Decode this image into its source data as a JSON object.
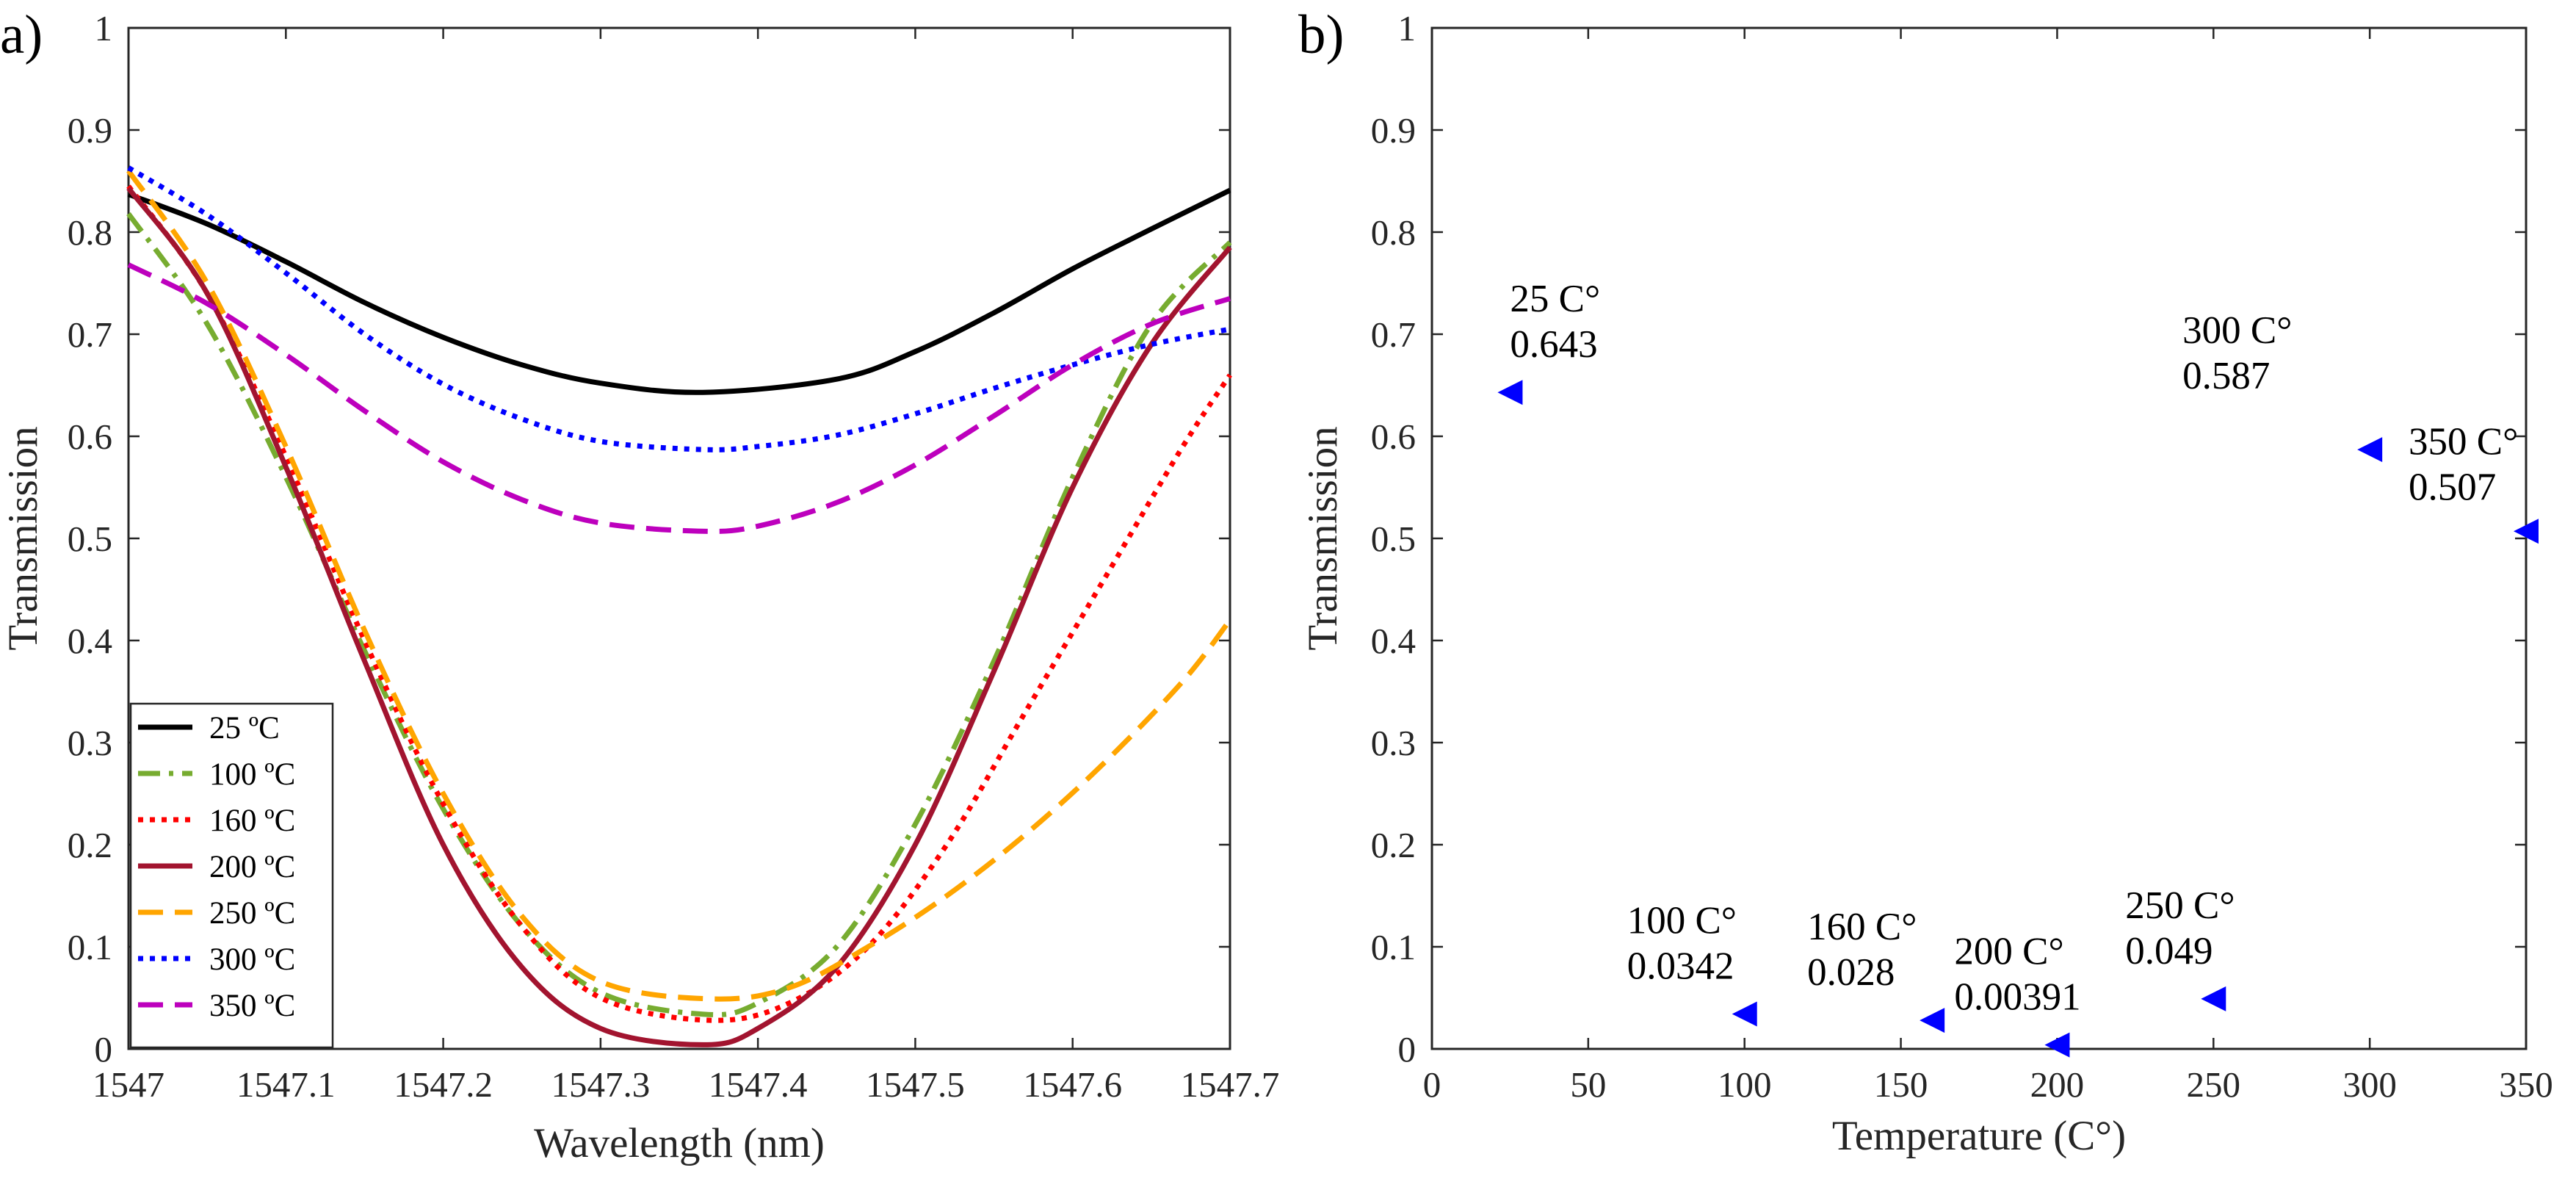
{
  "chart_data": [
    {
      "panel_label": "a)",
      "type": "line",
      "xlabel": "Wavelength (nm)",
      "ylabel": "Transmission",
      "xlim": [
        1547,
        1547.7
      ],
      "ylim": [
        0,
        1
      ],
      "xticks": [
        "1547",
        "1547.1",
        "1547.2",
        "1547.3",
        "1547.4",
        "1547.5",
        "1547.6",
        "1547.7"
      ],
      "yticks": [
        "0",
        "0.1",
        "0.2",
        "0.3",
        "0.4",
        "0.5",
        "0.6",
        "0.7",
        "0.8",
        "0.9",
        "1"
      ],
      "legend_position": "bottom-left",
      "series": [
        {
          "name": "25 ºC",
          "style": "solid",
          "color": "#000000",
          "x": [
            1547,
            1547.05,
            1547.1,
            1547.15,
            1547.2,
            1547.25,
            1547.3,
            1547.365,
            1547.45,
            1547.5,
            1547.55,
            1547.6,
            1547.65,
            1547.7
          ],
          "y": [
            0.837,
            0.808,
            0.771,
            0.731,
            0.697,
            0.67,
            0.652,
            0.643,
            0.656,
            0.683,
            0.721,
            0.764,
            0.803,
            0.841
          ]
        },
        {
          "name": "100 ºC",
          "style": "dashdot",
          "color": "#77ac30",
          "x": [
            1547,
            1547.05,
            1547.1,
            1547.15,
            1547.2,
            1547.25,
            1547.3,
            1547.365,
            1547.4,
            1547.45,
            1547.5,
            1547.55,
            1547.6,
            1547.65,
            1547.7
          ],
          "y": [
            0.818,
            0.71,
            0.56,
            0.39,
            0.235,
            0.12,
            0.055,
            0.034,
            0.045,
            0.1,
            0.22,
            0.38,
            0.56,
            0.71,
            0.79
          ]
        },
        {
          "name": "160 ºC",
          "style": "dotted",
          "color": "#ff0000",
          "x": [
            1547,
            1547.05,
            1547.1,
            1547.15,
            1547.2,
            1547.25,
            1547.3,
            1547.37,
            1547.42,
            1547.47,
            1547.52,
            1547.57,
            1547.62,
            1547.67,
            1547.7
          ],
          "y": [
            0.845,
            0.74,
            0.58,
            0.4,
            0.24,
            0.12,
            0.05,
            0.028,
            0.045,
            0.1,
            0.2,
            0.33,
            0.46,
            0.59,
            0.66
          ]
        },
        {
          "name": "200 ºC",
          "style": "solid",
          "color": "#a2142f",
          "x": [
            1547,
            1547.05,
            1547.1,
            1547.15,
            1547.2,
            1547.25,
            1547.3,
            1547.365,
            1547.4,
            1547.45,
            1547.5,
            1547.55,
            1547.6,
            1547.65,
            1547.7
          ],
          "y": [
            0.843,
            0.74,
            0.57,
            0.38,
            0.2,
            0.08,
            0.02,
            0.004,
            0.02,
            0.08,
            0.2,
            0.37,
            0.55,
            0.69,
            0.785
          ]
        },
        {
          "name": "250 ºC",
          "style": "dashed",
          "color": "#ffa500",
          "x": [
            1547,
            1547.05,
            1547.1,
            1547.15,
            1547.2,
            1547.25,
            1547.3,
            1547.37,
            1547.42,
            1547.47,
            1547.52,
            1547.57,
            1547.62,
            1547.67,
            1547.7
          ],
          "y": [
            0.86,
            0.75,
            0.59,
            0.41,
            0.25,
            0.13,
            0.066,
            0.049,
            0.06,
            0.1,
            0.15,
            0.21,
            0.28,
            0.36,
            0.42
          ]
        },
        {
          "name": "300 ºC",
          "style": "dotted",
          "color": "#0000ff",
          "x": [
            1547,
            1547.05,
            1547.1,
            1547.15,
            1547.2,
            1547.25,
            1547.3,
            1547.365,
            1547.4,
            1547.45,
            1547.5,
            1547.55,
            1547.6,
            1547.65,
            1547.7
          ],
          "y": [
            0.863,
            0.817,
            0.76,
            0.7,
            0.651,
            0.617,
            0.595,
            0.587,
            0.59,
            0.601,
            0.622,
            0.647,
            0.67,
            0.69,
            0.705
          ]
        },
        {
          "name": "350 ºC",
          "style": "dashed",
          "color": "#bd00bd",
          "x": [
            1547,
            1547.05,
            1547.1,
            1547.15,
            1547.2,
            1547.25,
            1547.3,
            1547.365,
            1547.4,
            1547.45,
            1547.5,
            1547.55,
            1547.6,
            1547.65,
            1547.7
          ],
          "y": [
            0.768,
            0.73,
            0.68,
            0.625,
            0.575,
            0.538,
            0.515,
            0.507,
            0.512,
            0.535,
            0.572,
            0.62,
            0.67,
            0.71,
            0.735
          ]
        }
      ]
    },
    {
      "panel_label": "b)",
      "type": "scatter",
      "xlabel": "Temperature (C°)",
      "ylabel": "Transmission",
      "xlim": [
        0,
        350
      ],
      "ylim": [
        0,
        1
      ],
      "xticks": [
        "0",
        "50",
        "100",
        "150",
        "200",
        "250",
        "300",
        "350"
      ],
      "yticks": [
        "0",
        "0.1",
        "0.2",
        "0.3",
        "0.4",
        "0.5",
        "0.6",
        "0.7",
        "0.8",
        "0.9",
        "1"
      ],
      "marker": "left-triangle",
      "marker_color": "#0000ff",
      "points": [
        {
          "x": 25,
          "y": 0.643,
          "label_temp": "25 C°",
          "label_value": "0.643"
        },
        {
          "x": 100,
          "y": 0.0342,
          "label_temp": "100 C°",
          "label_value": "0.0342"
        },
        {
          "x": 160,
          "y": 0.028,
          "label_temp": "160 C°",
          "label_value": "0.028"
        },
        {
          "x": 200,
          "y": 0.00391,
          "label_temp": "200 C°",
          "label_value": "0.00391"
        },
        {
          "x": 250,
          "y": 0.049,
          "label_temp": "250 C°",
          "label_value": "0.049"
        },
        {
          "x": 300,
          "y": 0.587,
          "label_temp": "300 C°",
          "label_value": "0.587"
        },
        {
          "x": 350,
          "y": 0.507,
          "label_temp": "350 C°",
          "label_value": "0.507"
        }
      ]
    }
  ]
}
